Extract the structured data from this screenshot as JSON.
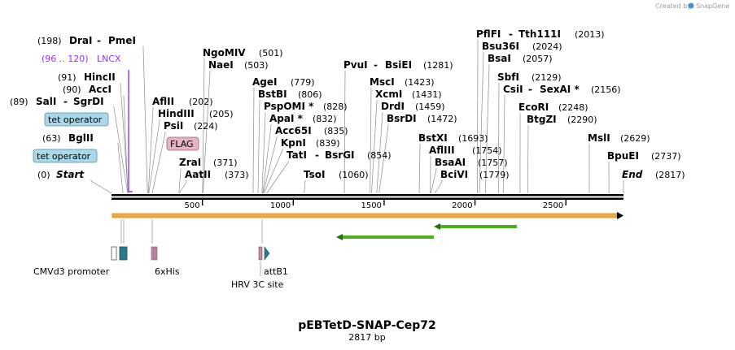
{
  "credit": {
    "text": "Created by",
    "brand": "SnapGene"
  },
  "map": {
    "title": "pEBTetD-SNAP-Cep72",
    "subtitle": "2817 bp",
    "length": 2817
  },
  "ticks": [
    {
      "value": 500,
      "label": "500"
    },
    {
      "value": 1000,
      "label": "1000"
    },
    {
      "value": 1500,
      "label": "1500"
    },
    {
      "value": 2000,
      "label": "2000"
    },
    {
      "value": 2500,
      "label": "2500"
    }
  ],
  "enzymes": [
    {
      "pos_label": "(198)",
      "name": "DraI",
      "name2": "PmeI",
      "site": 198
    },
    {
      "pos_label": "(91)",
      "name": "HincII",
      "site": 91
    },
    {
      "pos_label": "(90)",
      "name": "AccI",
      "site": 90
    },
    {
      "pos_label": "(89)",
      "name": "SalI",
      "name2": "SgrDI",
      "site": 89
    },
    {
      "pos_label": "(63)",
      "name": "BglII",
      "site": 63
    },
    {
      "pos_label": "(0)",
      "name": "Start",
      "site": 0,
      "italic": true
    },
    {
      "name": "AflII",
      "pos_label": "(202)",
      "site": 202
    },
    {
      "name": "HindIII",
      "pos_label": "(205)",
      "site": 205
    },
    {
      "name": "PsiI",
      "pos_label": "(224)",
      "site": 224
    },
    {
      "name": "NgoMIV",
      "pos_label": "(501)",
      "site": 501
    },
    {
      "name": "NaeI",
      "pos_label": "(503)",
      "site": 503
    },
    {
      "name": "ZraI",
      "pos_label": "(371)",
      "site": 371
    },
    {
      "name": "AatII",
      "pos_label": "(373)",
      "site": 373
    },
    {
      "name": "AgeI",
      "pos_label": "(779)",
      "site": 779
    },
    {
      "name": "BstBI",
      "pos_label": "(806)",
      "site": 806
    },
    {
      "name": "PspOMI *",
      "pos_label": "(828)",
      "site": 828
    },
    {
      "name": "ApaI *",
      "pos_label": "(832)",
      "site": 832
    },
    {
      "name": "Acc65I",
      "pos_label": "(835)",
      "site": 835
    },
    {
      "name": "KpnI",
      "pos_label": "(839)",
      "site": 839
    },
    {
      "name": "TatI",
      "name2": "BsrGI",
      "pos_label": "(854)",
      "site": 854
    },
    {
      "name": "TsoI",
      "pos_label": "(1060)",
      "site": 1060
    },
    {
      "name": "PvuI",
      "name2": "BsiEI",
      "pos_label": "(1281)",
      "site": 1281
    },
    {
      "name": "MscI",
      "pos_label": "(1423)",
      "site": 1423
    },
    {
      "name": "XcmI",
      "pos_label": "(1431)",
      "site": 1431
    },
    {
      "name": "DrdI",
      "pos_label": "(1459)",
      "site": 1459
    },
    {
      "name": "BsrDI",
      "pos_label": "(1472)",
      "site": 1472
    },
    {
      "name": "BstXI",
      "pos_label": "(1693)",
      "site": 1693
    },
    {
      "name": "AflIII",
      "pos_label": "(1754)",
      "site": 1754
    },
    {
      "name": "BsaAI",
      "pos_label": "(1757)",
      "site": 1757
    },
    {
      "name": "BciVI",
      "pos_label": "(1779)",
      "site": 1779
    },
    {
      "name": "PflFI",
      "name2": "Tth111I",
      "pos_label": "(2013)",
      "site": 2013
    },
    {
      "name": "Bsu36I",
      "pos_label": "(2024)",
      "site": 2024
    },
    {
      "name": "BsaI",
      "pos_label": "(2057)",
      "site": 2057
    },
    {
      "name": "SbfI",
      "pos_label": "(2129)",
      "site": 2129
    },
    {
      "name": "CsiI",
      "name2": "SexAI *",
      "pos_label": "(2156)",
      "site": 2156
    },
    {
      "name": "EcoRI",
      "pos_label": "(2248)",
      "site": 2248
    },
    {
      "name": "BtgZI",
      "pos_label": "(2290)",
      "site": 2290
    },
    {
      "name": "MslI",
      "pos_label": "(2629)",
      "site": 2629
    },
    {
      "name": "BpuEI",
      "pos_label": "(2737)",
      "site": 2737
    },
    {
      "name": "End",
      "pos_label": "(2817)",
      "site": 2817,
      "italic": true
    }
  ],
  "features_above": [
    {
      "label": "LNCX",
      "range_label": "(96 .. 120)",
      "color": "#9b30ff"
    },
    {
      "label": "tet operator",
      "color": "#a8d8ea"
    },
    {
      "label": "tet operator",
      "color": "#a8d8ea"
    },
    {
      "label": "FLAG",
      "color": "#e7b3c3"
    }
  ],
  "features_below": [
    {
      "label": "CMVd3 promoter"
    },
    {
      "label": "6xHis"
    },
    {
      "label": "HRV 3C site"
    },
    {
      "label": "attB1"
    }
  ],
  "colors": {
    "orf_fill": "#f2a93b",
    "arrow_green": "#4caf1e",
    "lncx": "#9b30ff",
    "tet": "#a8d8ea",
    "flag": "#e7b3c3",
    "cmv_teal": "#2a7a8c",
    "his": "#c08aa3",
    "brand": "#4a8fd1"
  }
}
